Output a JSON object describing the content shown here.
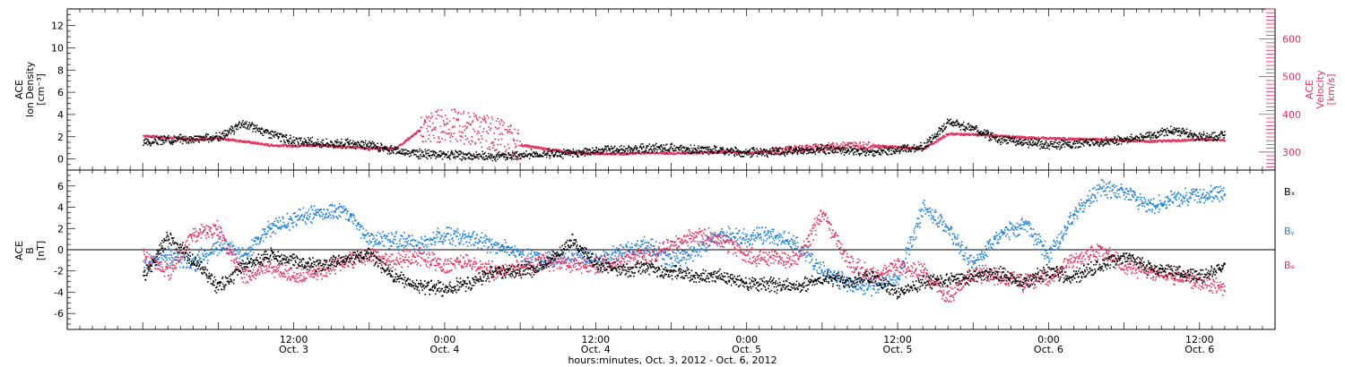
{
  "chart_data": [
    {
      "type": "scatter",
      "panel": "top",
      "ylabel_lines": [
        "ACE",
        "Ion Density",
        "[cm⁻³]"
      ],
      "ylabel_right_lines": [
        "ACE",
        "Velocity",
        "[km/s]"
      ],
      "ylim": [
        -1,
        13.5
      ],
      "yticks": [
        0,
        2,
        4,
        6,
        8,
        10,
        12
      ],
      "yticks_right": [
        300,
        400,
        500,
        600
      ],
      "ylim_right": [
        252,
        680
      ],
      "colors": {
        "density": "#000000",
        "velocity": "#e8305f"
      },
      "series": [
        {
          "name": "density",
          "x": [
            0,
            2,
            4,
            6,
            8,
            10,
            12,
            14,
            16,
            18,
            20,
            22,
            24,
            26,
            28,
            30,
            32,
            34,
            36,
            38,
            40,
            42,
            44,
            46,
            48,
            50,
            52,
            54,
            56,
            58,
            60,
            62,
            64,
            66,
            68,
            70,
            72,
            74,
            76,
            78,
            80,
            82,
            84,
            86
          ],
          "y": [
            1.5,
            1.8,
            1.9,
            2.0,
            3.2,
            2.4,
            1.6,
            1.5,
            1.4,
            1.3,
            0.8,
            0.5,
            0.4,
            0.3,
            0.3,
            0.4,
            0.5,
            0.6,
            0.8,
            0.9,
            1.0,
            1.0,
            0.9,
            0.8,
            0.6,
            0.7,
            0.8,
            0.9,
            0.8,
            0.7,
            0.9,
            1.1,
            3.4,
            2.8,
            1.8,
            1.6,
            1.3,
            1.4,
            1.6,
            1.8,
            2.2,
            2.6,
            2.0,
            2.2
          ]
        },
        {
          "name": "velocity",
          "x": [
            0,
            2,
            4,
            6,
            8,
            10,
            12,
            14,
            16,
            18,
            20,
            22,
            24,
            26,
            28,
            30,
            32,
            34,
            36,
            38,
            40,
            42,
            44,
            46,
            48,
            50,
            52,
            54,
            56,
            58,
            60,
            62,
            64,
            66,
            68,
            70,
            72,
            74,
            76,
            78,
            80,
            82,
            84,
            86
          ],
          "y": [
            345,
            340,
            335,
            338,
            330,
            320,
            318,
            320,
            315,
            312,
            310,
            360,
            375,
            365,
            350,
            320,
            310,
            300,
            298,
            297,
            300,
            298,
            300,
            302,
            300,
            303,
            310,
            315,
            320,
            318,
            315,
            310,
            350,
            348,
            345,
            340,
            338,
            336,
            335,
            333,
            330,
            332,
            335,
            333
          ]
        }
      ]
    },
    {
      "type": "scatter",
      "panel": "bottom",
      "ylabel_lines": [
        "ACE",
        "B",
        "[nT]"
      ],
      "ylim": [
        -7.5,
        7.5
      ],
      "yticks": [
        -6,
        -4,
        -2,
        0,
        2,
        4,
        6
      ],
      "zero_line": true,
      "legend": [
        "Bₓ",
        "Bᵧ",
        "Bₔ"
      ],
      "colors": {
        "bx": "#000000",
        "by": "#1a7fdc",
        "bz": "#e8305f"
      },
      "series": [
        {
          "name": "bx",
          "x": [
            0,
            2,
            4,
            6,
            8,
            10,
            12,
            14,
            16,
            18,
            20,
            22,
            24,
            26,
            28,
            30,
            32,
            34,
            36,
            38,
            40,
            42,
            44,
            46,
            48,
            50,
            52,
            54,
            56,
            58,
            60,
            62,
            64,
            66,
            68,
            70,
            72,
            74,
            76,
            78,
            80,
            82,
            84,
            86
          ],
          "y": [
            -2.5,
            1.2,
            -1.0,
            -3.5,
            -1.5,
            -0.5,
            -1.0,
            -1.5,
            -0.8,
            -0.3,
            -2.5,
            -3.5,
            -3.6,
            -3.0,
            -2.0,
            -2.0,
            -1.5,
            1.0,
            -1.2,
            -1.8,
            -1.6,
            -2.0,
            -2.5,
            -2.5,
            -3.0,
            -3.2,
            -3.5,
            -2.5,
            -3.0,
            -2.5,
            -4.0,
            -3.0,
            -2.8,
            -2.5,
            -2.2,
            -3.0,
            -2.0,
            -2.5,
            -1.5,
            -0.5,
            -1.8,
            -2.0,
            -2.5,
            -1.5
          ]
        },
        {
          "name": "by",
          "x": [
            0,
            2,
            4,
            6,
            8,
            10,
            12,
            14,
            16,
            18,
            20,
            22,
            24,
            26,
            28,
            30,
            32,
            34,
            36,
            38,
            40,
            42,
            44,
            46,
            48,
            50,
            52,
            54,
            56,
            58,
            60,
            62,
            64,
            66,
            68,
            70,
            72,
            74,
            76,
            78,
            80,
            82,
            84,
            86
          ],
          "y": [
            -1.5,
            -0.5,
            -1.2,
            0.5,
            -0.5,
            2.0,
            3.0,
            3.5,
            3.8,
            1.0,
            1.0,
            0.5,
            1.5,
            1.0,
            0.5,
            -0.5,
            -1.0,
            -0.5,
            -1.0,
            -0.2,
            0.5,
            -1.0,
            0.0,
            1.5,
            1.2,
            1.5,
            0.5,
            -2.0,
            -3.0,
            -3.5,
            -2.5,
            4.0,
            2.0,
            -1.5,
            1.5,
            2.5,
            -0.5,
            3.5,
            5.8,
            5.5,
            4.0,
            5.0,
            5.2,
            5.5
          ]
        },
        {
          "name": "bz",
          "x": [
            0,
            2,
            4,
            6,
            8,
            10,
            12,
            14,
            16,
            18,
            20,
            22,
            24,
            26,
            28,
            30,
            32,
            34,
            36,
            38,
            40,
            42,
            44,
            46,
            48,
            50,
            52,
            54,
            56,
            58,
            60,
            62,
            64,
            66,
            68,
            70,
            72,
            74,
            76,
            78,
            80,
            82,
            84,
            86
          ],
          "y": [
            -0.5,
            -2.0,
            1.5,
            2.0,
            -2.5,
            -1.5,
            -2.5,
            -2.0,
            -1.0,
            -0.5,
            -1.0,
            -0.5,
            -1.5,
            -1.0,
            -2.0,
            -1.5,
            -1.0,
            -1.2,
            -1.5,
            -0.8,
            -0.5,
            0.5,
            1.5,
            1.0,
            -0.5,
            -0.8,
            -1.0,
            3.5,
            -1.0,
            -2.5,
            -1.5,
            -2.0,
            -4.5,
            -2.0,
            -2.5,
            -3.0,
            -2.5,
            -1.0,
            0.0,
            -1.5,
            -2.0,
            -2.5,
            -3.0,
            -3.5
          ]
        }
      ]
    }
  ],
  "x_axis": {
    "range_hours": [
      -6,
      90
    ],
    "ticks": [
      {
        "h": 12,
        "time": "12:00",
        "day": "Oct. 3"
      },
      {
        "h": 24,
        "time": "0:00",
        "day": "Oct. 4"
      },
      {
        "h": 36,
        "time": "12:00",
        "day": "Oct. 4"
      },
      {
        "h": 48,
        "time": "0:00",
        "day": "Oct. 5"
      },
      {
        "h": 60,
        "time": "12:00",
        "day": "Oct. 5"
      },
      {
        "h": 72,
        "time": "0:00",
        "day": "Oct. 6"
      },
      {
        "h": 84,
        "time": "12:00",
        "day": "Oct. 6"
      }
    ],
    "xlabel": "hours:minutes, Oct.  3, 2012 - Oct.  6, 2012"
  }
}
